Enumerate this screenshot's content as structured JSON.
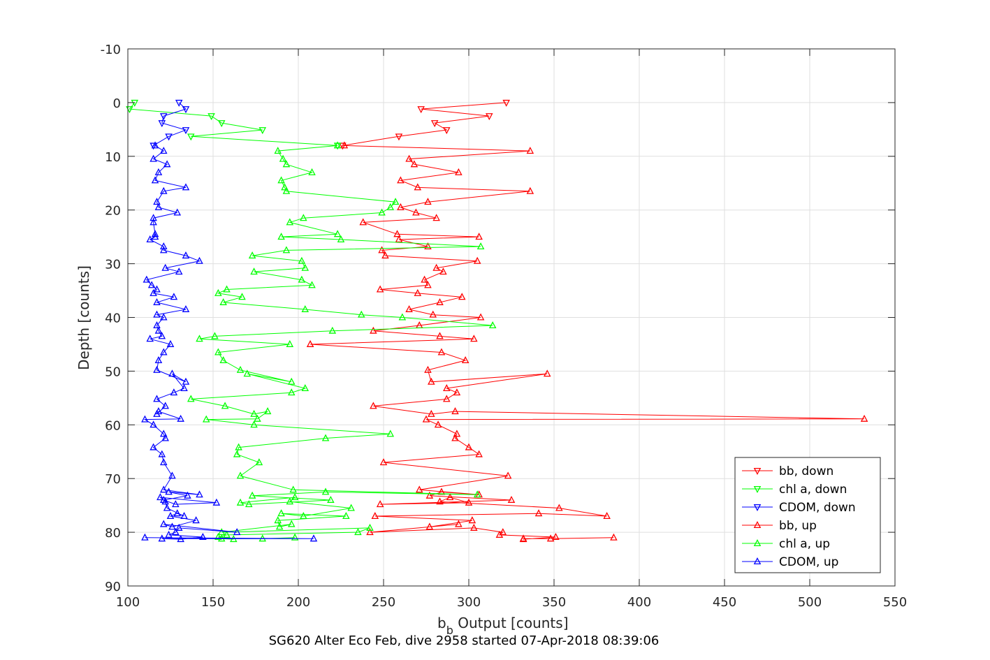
{
  "chart_data": {
    "type": "line",
    "caption": "SG620 Alter Eco Feb, dive 2958 started 07-Apr-2018 08:39:06",
    "xlabel_main": "b",
    "xlabel_sub": "b",
    "xlabel_rest": " Output [counts]",
    "ylabel": "Depth [counts]",
    "xlim": [
      100,
      550
    ],
    "ylim": [
      -10,
      90
    ],
    "y_reversed": true,
    "grid": true,
    "legend_position": "bottom-right",
    "xticks": [
      100,
      150,
      200,
      250,
      300,
      350,
      400,
      450,
      500,
      550
    ],
    "yticks": [
      -10,
      0,
      10,
      20,
      30,
      40,
      50,
      60,
      70,
      80,
      90
    ],
    "series": [
      {
        "name": "bb, down",
        "color": "#ff0000",
        "marker": "triangle-down",
        "x": [
          322,
          272,
          312,
          280,
          287,
          259,
          226
        ],
        "y": [
          0.0,
          1.2,
          2.5,
          3.8,
          5.1,
          6.3,
          8.0
        ]
      },
      {
        "name": "chl a, down",
        "color": "#00ff00",
        "marker": "triangle-down",
        "x": [
          104,
          101,
          149,
          155,
          179,
          137,
          223
        ],
        "y": [
          0.0,
          1.2,
          2.5,
          3.8,
          5.1,
          6.3,
          8.0
        ]
      },
      {
        "name": "CDOM, down",
        "color": "#0000ff",
        "marker": "triangle-down",
        "x": [
          130,
          134,
          121,
          120,
          134,
          124,
          115
        ],
        "y": [
          0.0,
          1.2,
          2.5,
          3.8,
          5.1,
          6.3,
          8.0
        ]
      },
      {
        "name": "bb, up",
        "color": "#ff0000",
        "marker": "triangle-up",
        "x": [
          385,
          348,
          332,
          332,
          351,
          318,
          320,
          303,
          242,
          294,
          277,
          302,
          245,
          341,
          381,
          353,
          283,
          289,
          300,
          248,
          325,
          277,
          284,
          306,
          271,
          323,
          250,
          306,
          300,
          292,
          293,
          282,
          275,
          532,
          292,
          278,
          244,
          287,
          293,
          287,
          346,
          278,
          276,
          298,
          284,
          207,
          303,
          283,
          244,
          271,
          307,
          279,
          265,
          283,
          296,
          270,
          248,
          276,
          274,
          285,
          281,
          305,
          251,
          249,
          276,
          259,
          306,
          258,
          238,
          281,
          269,
          260,
          276,
          336,
          270,
          260,
          294,
          268,
          265,
          336,
          227
        ],
        "y": [
          81.0,
          81.2,
          81.2,
          81.3,
          80.9,
          80.5,
          80.0,
          79.2,
          80.0,
          78.5,
          79.0,
          77.8,
          77.0,
          76.5,
          77.0,
          75.5,
          74.3,
          73.5,
          74.5,
          74.8,
          74.0,
          73.2,
          72.5,
          73.0,
          72.1,
          69.5,
          67.0,
          65.5,
          64.2,
          62.5,
          61.7,
          60.0,
          59.0,
          58.9,
          57.5,
          58.0,
          56.5,
          55.2,
          54.0,
          53.2,
          50.5,
          52.0,
          49.8,
          48.0,
          46.5,
          45.0,
          44.0,
          43.5,
          42.5,
          41.5,
          40.0,
          39.5,
          38.5,
          37.2,
          36.2,
          35.5,
          34.8,
          34.0,
          33.0,
          31.5,
          30.8,
          29.5,
          28.5,
          27.5,
          26.8,
          25.5,
          25.0,
          24.5,
          22.3,
          21.5,
          20.5,
          19.5,
          18.5,
          16.5,
          15.8,
          14.5,
          13.0,
          11.5,
          10.5,
          9.0,
          8.0
        ]
      },
      {
        "name": "chl a, up",
        "color": "#00ff00",
        "marker": "triangle-up",
        "x": [
          198,
          179,
          155,
          162,
          153,
          158,
          235,
          242,
          155,
          196,
          189,
          188,
          228,
          190,
          203,
          231,
          195,
          198,
          166,
          171,
          219,
          173,
          216,
          305,
          197,
          166,
          177,
          164,
          165,
          216,
          254,
          174,
          146,
          176,
          182,
          174,
          157,
          137,
          196,
          204,
          170,
          196,
          166,
          156,
          153,
          195,
          142,
          151,
          220,
          314,
          261,
          237,
          204,
          156,
          167,
          153,
          158,
          208,
          202,
          174,
          204,
          202,
          173,
          193,
          307,
          225,
          190,
          223,
          195,
          203,
          249,
          254,
          257,
          193,
          192,
          190,
          208,
          193,
          191,
          188,
          223
        ],
        "y": [
          81.0,
          81.2,
          81.2,
          81.3,
          80.9,
          80.5,
          80.0,
          79.2,
          80.0,
          78.5,
          79.0,
          77.8,
          77.0,
          76.5,
          77.0,
          75.5,
          74.3,
          73.5,
          74.5,
          74.8,
          74.0,
          73.2,
          72.5,
          73.0,
          72.1,
          69.5,
          67.0,
          65.5,
          64.2,
          62.5,
          61.7,
          60.0,
          59.0,
          58.9,
          57.5,
          58.0,
          56.5,
          55.2,
          54.0,
          53.2,
          50.5,
          52.0,
          49.8,
          48.0,
          46.5,
          45.0,
          44.0,
          43.5,
          42.5,
          41.5,
          40.0,
          39.5,
          38.5,
          37.2,
          36.2,
          35.5,
          34.8,
          34.0,
          33.0,
          31.5,
          30.8,
          29.5,
          28.5,
          27.5,
          26.8,
          25.5,
          25.0,
          24.5,
          22.3,
          21.5,
          20.5,
          19.5,
          18.5,
          16.5,
          15.8,
          14.5,
          13.0,
          11.5,
          10.5,
          9.0,
          8.0
        ]
      },
      {
        "name": "CDOM, up",
        "color": "#0000ff",
        "marker": "triangle-up",
        "x": [
          110,
          209,
          120,
          131,
          144,
          124,
          128,
          130,
          164,
          121,
          126,
          140,
          125,
          129,
          133,
          123,
          122,
          119,
          152,
          128,
          121,
          135,
          124,
          142,
          121,
          126,
          121,
          120,
          115,
          122,
          121,
          115,
          110,
          131,
          118,
          117,
          122,
          117,
          127,
          133,
          126,
          134,
          117,
          118,
          121,
          125,
          113,
          120,
          118,
          117,
          121,
          117,
          134,
          117,
          127,
          115,
          117,
          114,
          111,
          130,
          122,
          142,
          134,
          121,
          121,
          113,
          116,
          116,
          115,
          115,
          129,
          118,
          117,
          121,
          134,
          116,
          118,
          123,
          115,
          121,
          116
        ],
        "y": [
          81.0,
          81.2,
          81.2,
          81.3,
          80.9,
          80.5,
          80.0,
          79.2,
          80.0,
          78.5,
          79.0,
          77.8,
          77.0,
          76.5,
          77.0,
          75.5,
          74.3,
          73.5,
          74.5,
          74.8,
          74.0,
          73.2,
          72.5,
          73.0,
          72.1,
          69.5,
          67.0,
          65.5,
          64.2,
          62.5,
          61.7,
          60.0,
          59.0,
          58.9,
          57.5,
          58.0,
          56.5,
          55.2,
          54.0,
          53.2,
          50.5,
          52.0,
          49.8,
          48.0,
          46.5,
          45.0,
          44.0,
          43.5,
          42.5,
          41.5,
          40.0,
          39.5,
          38.5,
          37.2,
          36.2,
          35.5,
          34.8,
          34.0,
          33.0,
          31.5,
          30.8,
          29.5,
          28.5,
          27.5,
          26.8,
          25.5,
          25.0,
          24.5,
          22.3,
          21.5,
          20.5,
          19.5,
          18.5,
          16.5,
          15.8,
          14.5,
          13.0,
          11.5,
          10.5,
          9.0,
          8.0
        ]
      }
    ]
  }
}
